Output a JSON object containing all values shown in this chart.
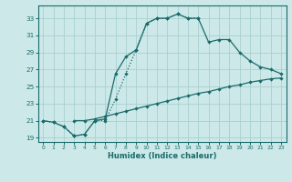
{
  "xlabel": "Humidex (Indice chaleur)",
  "bg_color": "#cce8e8",
  "grid_color": "#aacfcf",
  "line_color": "#1a6b6b",
  "xlim": [
    -0.5,
    23.5
  ],
  "ylim": [
    18.5,
    34.5
  ],
  "yticks": [
    19,
    21,
    23,
    25,
    27,
    29,
    31,
    33
  ],
  "xticks": [
    0,
    1,
    2,
    3,
    4,
    5,
    6,
    7,
    8,
    9,
    10,
    11,
    12,
    13,
    14,
    15,
    16,
    17,
    18,
    19,
    20,
    21,
    22,
    23
  ],
  "line1_x": [
    0,
    1,
    2,
    3,
    4,
    5,
    6,
    7,
    8,
    9,
    10,
    11,
    12,
    13,
    14,
    15,
    16,
    17,
    18,
    19,
    20,
    21,
    22,
    23
  ],
  "line1_y": [
    21.0,
    20.8,
    20.3,
    19.2,
    19.4,
    21.0,
    21.2,
    26.5,
    28.5,
    29.3,
    32.4,
    33.0,
    33.0,
    33.5,
    33.0,
    33.0,
    30.2,
    30.5,
    30.5,
    29.0,
    28.0,
    27.3,
    27.0,
    26.5
  ],
  "line2_x": [
    0,
    1,
    2,
    3,
    4,
    5,
    6,
    7,
    8,
    9,
    10,
    11,
    12,
    13,
    14,
    15,
    16,
    17,
    18,
    19,
    20,
    21,
    22,
    23
  ],
  "line2_y": [
    21.0,
    20.8,
    20.3,
    19.2,
    19.4,
    21.0,
    21.0,
    23.5,
    26.5,
    29.3,
    32.4,
    33.0,
    33.0,
    33.5,
    33.0,
    33.0,
    null,
    null,
    null,
    null,
    null,
    null,
    null,
    null
  ],
  "line3_x": [
    3,
    4,
    5,
    6,
    7,
    8,
    9,
    10,
    11,
    12,
    13,
    14,
    15,
    16,
    17,
    18,
    19,
    20,
    21,
    22,
    23
  ],
  "line3_y": [
    21.0,
    21.0,
    21.2,
    21.5,
    21.8,
    22.1,
    22.4,
    22.7,
    23.0,
    23.3,
    23.6,
    23.9,
    24.2,
    24.4,
    24.7,
    25.0,
    25.2,
    25.5,
    25.7,
    25.9,
    26.0
  ]
}
